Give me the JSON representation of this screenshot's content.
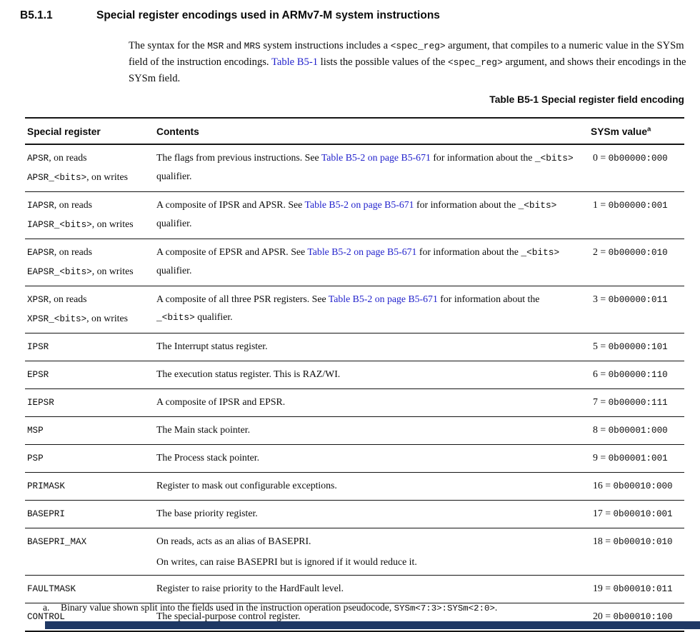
{
  "section": {
    "number": "B5.1.1",
    "title": "Special register encodings used in ARMv7-M system instructions"
  },
  "intro_segments": [
    [
      "s",
      "The syntax for the "
    ],
    [
      "m",
      "MSR"
    ],
    [
      "s",
      " and "
    ],
    [
      "m",
      "MRS"
    ],
    [
      "s",
      " system instructions includes a "
    ],
    [
      "m",
      "<spec_reg>"
    ],
    [
      "s",
      " argument, that compiles to a numeric value in the SYSm field of the instruction encodings. "
    ],
    [
      "l",
      "Table B5-1"
    ],
    [
      "s",
      " lists the possible values of the "
    ],
    [
      "m",
      "<spec_reg>"
    ],
    [
      "s",
      " argument, and shows their encodings in the SYSm field."
    ]
  ],
  "table": {
    "caption": "Table B5-1 Special register field encoding",
    "headers": {
      "col1": "Special register",
      "col2": "Contents",
      "col3": "SYSm value",
      "note_marker": "a"
    },
    "rows": [
      {
        "register": [
          [
            [
              "m",
              "APSR"
            ],
            [
              "s",
              ", on reads"
            ]
          ],
          [
            [
              "m",
              "APSR_<bits>"
            ],
            [
              "s",
              ", on writes"
            ]
          ]
        ],
        "contents": [
          [
            [
              "s",
              "The flags from previous instructions. See "
            ],
            [
              "l",
              "Table B5-2 on page B5-671"
            ],
            [
              "s",
              " for information about the "
            ],
            [
              "m",
              "_<bits>"
            ],
            [
              "s",
              " qualifier."
            ]
          ]
        ],
        "num": "0",
        "bin": "0b00000:000"
      },
      {
        "register": [
          [
            [
              "m",
              "IAPSR"
            ],
            [
              "s",
              ", on reads"
            ]
          ],
          [
            [
              "m",
              "IAPSR_<bits>"
            ],
            [
              "s",
              ", on writes"
            ]
          ]
        ],
        "contents": [
          [
            [
              "s",
              "A composite of IPSR and APSR. See "
            ],
            [
              "l",
              "Table B5-2 on page B5-671"
            ],
            [
              "s",
              " for information about the "
            ],
            [
              "m",
              "_<bits>"
            ],
            [
              "s",
              " qualifier."
            ]
          ]
        ],
        "num": "1",
        "bin": "0b00000:001"
      },
      {
        "register": [
          [
            [
              "m",
              "EAPSR"
            ],
            [
              "s",
              ", on reads"
            ]
          ],
          [
            [
              "m",
              "EAPSR_<bits>"
            ],
            [
              "s",
              ", on writes"
            ]
          ]
        ],
        "contents": [
          [
            [
              "s",
              "A composite of EPSR and APSR. See "
            ],
            [
              "l",
              "Table B5-2 on page B5-671"
            ],
            [
              "s",
              " for information about the "
            ],
            [
              "m",
              "_<bits>"
            ],
            [
              "s",
              " qualifier."
            ]
          ]
        ],
        "num": "2",
        "bin": "0b00000:010"
      },
      {
        "register": [
          [
            [
              "m",
              "XPSR"
            ],
            [
              "s",
              ", on reads"
            ]
          ],
          [
            [
              "m",
              "XPSR_<bits>"
            ],
            [
              "s",
              ", on writes"
            ]
          ]
        ],
        "contents": [
          [
            [
              "s",
              "A composite of all three PSR registers. See "
            ],
            [
              "l",
              "Table B5-2 on page B5-671"
            ],
            [
              "s",
              " for information about the "
            ],
            [
              "m",
              "_<bits>"
            ],
            [
              "s",
              " qualifier."
            ]
          ]
        ],
        "num": "3",
        "bin": "0b00000:011"
      },
      {
        "register": [
          [
            [
              "m",
              "IPSR"
            ]
          ]
        ],
        "contents": [
          [
            [
              "s",
              "The Interrupt status register."
            ]
          ]
        ],
        "num": "5",
        "bin": "0b00000:101"
      },
      {
        "register": [
          [
            [
              "m",
              "EPSR"
            ]
          ]
        ],
        "contents": [
          [
            [
              "s",
              "The execution status register. This is RAZ/WI."
            ]
          ]
        ],
        "num": "6",
        "bin": "0b00000:110"
      },
      {
        "register": [
          [
            [
              "m",
              "IEPSR"
            ]
          ]
        ],
        "contents": [
          [
            [
              "s",
              "A composite of IPSR and EPSR."
            ]
          ]
        ],
        "num": "7",
        "bin": "0b00000:111"
      },
      {
        "register": [
          [
            [
              "m",
              "MSP"
            ]
          ]
        ],
        "contents": [
          [
            [
              "s",
              "The Main stack pointer."
            ]
          ]
        ],
        "num": "8",
        "bin": "0b00001:000"
      },
      {
        "register": [
          [
            [
              "m",
              "PSP"
            ]
          ]
        ],
        "contents": [
          [
            [
              "s",
              "The Process stack pointer."
            ]
          ]
        ],
        "num": "9",
        "bin": "0b00001:001"
      },
      {
        "register": [
          [
            [
              "m",
              "PRIMASK"
            ]
          ]
        ],
        "contents": [
          [
            [
              "s",
              "Register to mask out configurable exceptions."
            ]
          ]
        ],
        "num": "16",
        "bin": "0b00010:000"
      },
      {
        "register": [
          [
            [
              "m",
              "BASEPRI"
            ]
          ]
        ],
        "contents": [
          [
            [
              "s",
              "The base priority register."
            ]
          ]
        ],
        "num": "17",
        "bin": "0b00010:001"
      },
      {
        "register": [
          [
            [
              "m",
              "BASEPRI_MAX"
            ]
          ]
        ],
        "contents": [
          [
            [
              "s",
              "On reads, acts as an alias of BASEPRI."
            ]
          ],
          [
            [
              "s",
              "On writes, can raise BASEPRI but is ignored if it would reduce it."
            ]
          ]
        ],
        "num": "18",
        "bin": "0b00010:010"
      },
      {
        "register": [
          [
            [
              "m",
              "FAULTMASK"
            ]
          ]
        ],
        "contents": [
          [
            [
              "s",
              "Register to raise priority to the HardFault level."
            ]
          ]
        ],
        "num": "19",
        "bin": "0b00010:011"
      },
      {
        "register": [
          [
            [
              "m",
              "CONTROL"
            ]
          ]
        ],
        "contents": [
          [
            [
              "s",
              "The special-purpose control register."
            ]
          ]
        ],
        "num": "20",
        "bin": "0b00010:100"
      }
    ],
    "value_separator": " = "
  },
  "footnote": {
    "marker": "a.",
    "segments": [
      [
        "s",
        "Binary value shown split into the fields used in the instruction operation pseudocode, "
      ],
      [
        "m",
        "SYSm<7:3>:SYSm<2:0>"
      ],
      [
        "s",
        "."
      ]
    ]
  },
  "colors": {
    "link": "#2222cc",
    "bottom_bar": "#1f3864"
  }
}
